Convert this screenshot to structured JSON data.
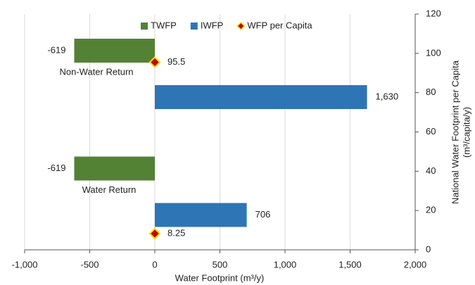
{
  "chart_data": {
    "type": "hbar",
    "categories": [
      "Non-Water Return",
      "Water Return"
    ],
    "series": [
      {
        "name": "TWFP",
        "color": "#548235",
        "values": [
          -619,
          -619
        ]
      },
      {
        "name": "IWFP",
        "color": "#2e75b6",
        "values": [
          1630,
          706
        ],
        "value_labels": [
          "1,630",
          "706"
        ]
      },
      {
        "name": "WFP per Capita",
        "color": "#c00000",
        "marker": "diamond",
        "axis": "y2",
        "x": [
          0,
          0
        ],
        "values": [
          95.5,
          8.25
        ]
      }
    ],
    "xlim": [
      -1000,
      2000
    ],
    "xticks": [
      {
        "value": -1000,
        "label": "-1,000"
      },
      -500,
      0,
      500,
      {
        "value": 1000,
        "label": "1,000"
      },
      {
        "value": 1500,
        "label": "1,500"
      },
      {
        "value": 2000,
        "label": "2,000"
      }
    ],
    "y2lim": [
      0,
      120
    ],
    "y2ticks": [
      0,
      20,
      40,
      60,
      80,
      100,
      120
    ],
    "x_label": "Water Footprint (m³/y)",
    "y2_label": [
      "National Water Footprint per Capita",
      "(m³/capita/y)"
    ],
    "grid": true,
    "legend": "top"
  }
}
